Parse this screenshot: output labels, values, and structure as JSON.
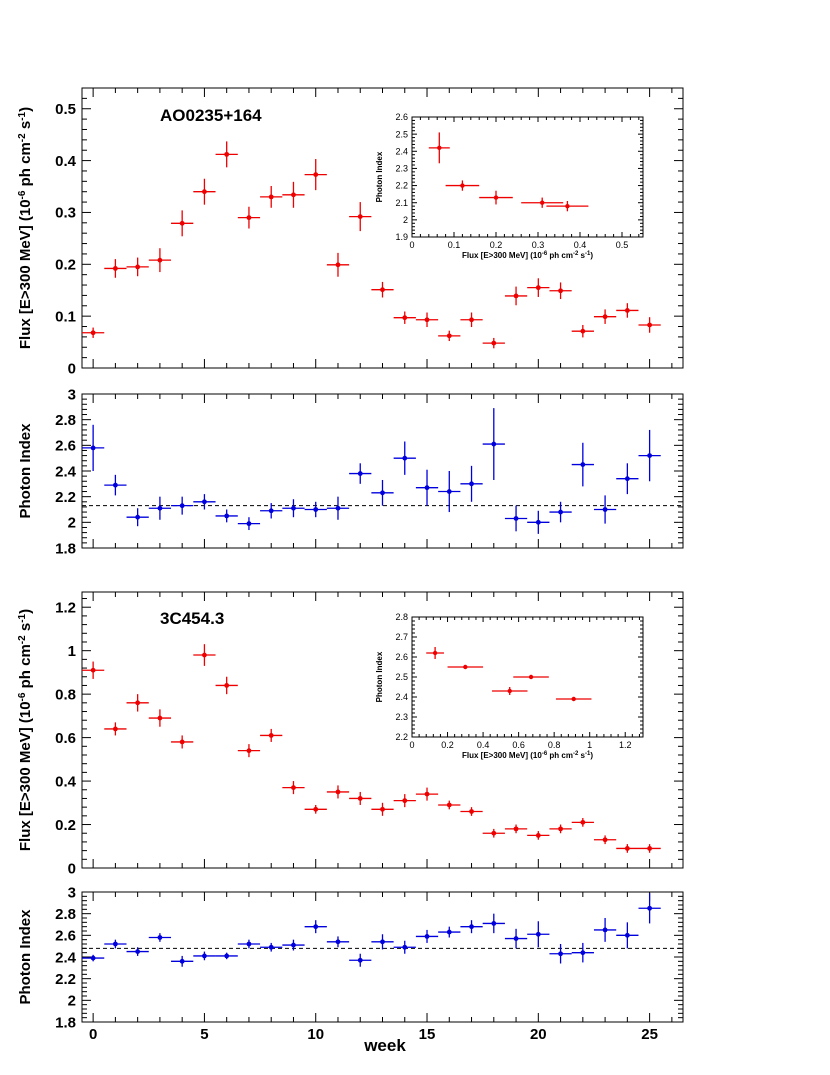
{
  "x_axis": {
    "label": "week",
    "range": [
      -0.5,
      26.5
    ],
    "ticks": [
      "0",
      "5",
      "10",
      "15",
      "20",
      "25"
    ]
  },
  "colors": {
    "flux": "#ee0000",
    "index": "#0000dd",
    "axis": "#000000",
    "reference": "#000000"
  },
  "chart_data": [
    {
      "id": "ao_flux",
      "type": "scatter",
      "title": "AO0235+164",
      "ylabel": "Flux [E>300 MeV] (10^-6 ph cm^-2 s^-1)",
      "ylim": [
        0,
        0.54
      ],
      "yticks": [
        "0",
        "0.1",
        "0.2",
        "0.3",
        "0.4",
        "0.5"
      ],
      "x_error": 0.5,
      "series": [
        {
          "x": [
            0,
            1,
            2,
            3,
            4,
            5,
            6,
            7,
            8,
            9,
            10,
            11,
            12,
            13,
            14,
            15,
            16,
            17,
            18,
            19,
            20,
            21,
            22,
            23,
            24,
            25
          ],
          "y": [
            0.068,
            0.192,
            0.195,
            0.208,
            0.279,
            0.34,
            0.412,
            0.29,
            0.33,
            0.334,
            0.373,
            0.199,
            0.292,
            0.151,
            0.097,
            0.093,
            0.062,
            0.093,
            0.048,
            0.139,
            0.155,
            0.149,
            0.071,
            0.099,
            0.111,
            0.083
          ],
          "yerr": [
            0.01,
            0.018,
            0.018,
            0.023,
            0.025,
            0.025,
            0.025,
            0.021,
            0.021,
            0.025,
            0.03,
            0.023,
            0.028,
            0.015,
            0.012,
            0.014,
            0.01,
            0.014,
            0.01,
            0.018,
            0.018,
            0.016,
            0.012,
            0.014,
            0.014,
            0.015
          ]
        }
      ]
    },
    {
      "id": "ao_index",
      "type": "scatter",
      "ylabel": "Photon Index",
      "ylim": [
        1.8,
        3.0
      ],
      "yticks": [
        "1.8",
        "2",
        "2.2",
        "2.4",
        "2.6",
        "2.8",
        "3"
      ],
      "x_error": 0.5,
      "reference_line": 2.13,
      "series": [
        {
          "x": [
            0,
            1,
            2,
            3,
            4,
            5,
            6,
            7,
            8,
            9,
            10,
            11,
            12,
            13,
            14,
            15,
            16,
            17,
            18,
            19,
            20,
            21,
            22,
            23,
            24,
            25
          ],
          "y": [
            2.58,
            2.29,
            2.04,
            2.11,
            2.13,
            2.16,
            2.05,
            1.99,
            2.09,
            2.11,
            2.1,
            2.11,
            2.38,
            2.23,
            2.5,
            2.27,
            2.24,
            2.3,
            2.61,
            2.03,
            2.0,
            2.08,
            2.45,
            2.1,
            2.34,
            2.52
          ],
          "yerr": [
            0.18,
            0.08,
            0.07,
            0.09,
            0.07,
            0.06,
            0.05,
            0.05,
            0.06,
            0.07,
            0.06,
            0.09,
            0.08,
            0.1,
            0.13,
            0.14,
            0.16,
            0.14,
            0.28,
            0.1,
            0.09,
            0.08,
            0.17,
            0.11,
            0.12,
            0.2
          ]
        }
      ]
    },
    {
      "id": "ao_inset",
      "type": "scatter",
      "xlabel": "Flux [E>300 MeV] (10^-6 ph cm^-2 s^-1)",
      "ylabel": "Photon Index",
      "xlim": [
        0,
        0.55
      ],
      "ylim": [
        1.9,
        2.6
      ],
      "xticks": [
        "0",
        "0.1",
        "0.2",
        "0.3",
        "0.4",
        "0.5"
      ],
      "yticks": [
        "1.9",
        "2",
        "2.1",
        "2.2",
        "2.3",
        "2.4",
        "2.5",
        "2.6"
      ],
      "series": [
        {
          "x": [
            0.065,
            0.12,
            0.2,
            0.31,
            0.37
          ],
          "xerr": [
            0.025,
            0.04,
            0.04,
            0.05,
            0.05
          ],
          "y": [
            2.42,
            2.2,
            2.13,
            2.1,
            2.08
          ],
          "yerr": [
            0.09,
            0.03,
            0.04,
            0.03,
            0.03
          ]
        }
      ]
    },
    {
      "id": "c3_flux",
      "type": "scatter",
      "title": "3C454.3",
      "ylabel": "Flux [E>300 MeV] (10^-6 ph cm^-2 s^-1)",
      "ylim": [
        0,
        1.27
      ],
      "yticks": [
        "0",
        "0.2",
        "0.4",
        "0.6",
        "0.8",
        "1",
        "1.2"
      ],
      "x_error": 0.5,
      "series": [
        {
          "x": [
            0,
            1,
            2,
            3,
            4,
            5,
            6,
            7,
            8,
            9,
            10,
            11,
            12,
            13,
            14,
            15,
            16,
            17,
            18,
            19,
            20,
            21,
            22,
            23,
            24,
            25
          ],
          "y": [
            0.91,
            0.64,
            0.76,
            0.69,
            0.58,
            0.98,
            0.84,
            0.54,
            0.61,
            0.37,
            0.27,
            0.35,
            0.32,
            0.27,
            0.31,
            0.34,
            0.29,
            0.26,
            0.16,
            0.18,
            0.15,
            0.18,
            0.21,
            0.13,
            0.09,
            0.09
          ],
          "yerr": [
            0.04,
            0.03,
            0.04,
            0.04,
            0.03,
            0.05,
            0.04,
            0.03,
            0.03,
            0.03,
            0.02,
            0.03,
            0.03,
            0.03,
            0.03,
            0.03,
            0.02,
            0.02,
            0.02,
            0.02,
            0.02,
            0.02,
            0.02,
            0.02,
            0.02,
            0.02
          ]
        }
      ]
    },
    {
      "id": "c3_index",
      "type": "scatter",
      "ylabel": "Photon Index",
      "ylim": [
        1.8,
        3.0
      ],
      "yticks": [
        "1.8",
        "2",
        "2.2",
        "2.4",
        "2.6",
        "2.8",
        "3"
      ],
      "x_error": 0.5,
      "reference_line": 2.48,
      "series": [
        {
          "x": [
            0,
            1,
            2,
            3,
            4,
            5,
            6,
            7,
            8,
            9,
            10,
            11,
            12,
            13,
            14,
            15,
            16,
            17,
            18,
            19,
            20,
            21,
            22,
            23,
            24,
            25
          ],
          "y": [
            2.39,
            2.52,
            2.45,
            2.58,
            2.36,
            2.41,
            2.41,
            2.52,
            2.49,
            2.51,
            2.68,
            2.54,
            2.37,
            2.54,
            2.49,
            2.59,
            2.63,
            2.68,
            2.71,
            2.57,
            2.61,
            2.43,
            2.44,
            2.65,
            2.6,
            2.85
          ],
          "yerr": [
            0.03,
            0.04,
            0.04,
            0.04,
            0.05,
            0.04,
            0.03,
            0.04,
            0.04,
            0.05,
            0.06,
            0.05,
            0.06,
            0.07,
            0.06,
            0.06,
            0.05,
            0.06,
            0.09,
            0.09,
            0.12,
            0.09,
            0.09,
            0.11,
            0.12,
            0.14
          ]
        }
      ]
    },
    {
      "id": "c3_inset",
      "type": "scatter",
      "xlabel": "Flux [E>300 MeV] (10^-6 ph cm^-2 s^-1)",
      "ylabel": "Photon Index",
      "xlim": [
        0,
        1.3
      ],
      "ylim": [
        2.2,
        2.8
      ],
      "xticks": [
        "0",
        "0.2",
        "0.4",
        "0.6",
        "0.8",
        "1",
        "1.2"
      ],
      "yticks": [
        "2.2",
        "2.3",
        "2.4",
        "2.5",
        "2.6",
        "2.7",
        "2.8"
      ],
      "series": [
        {
          "x": [
            0.13,
            0.3,
            0.55,
            0.67,
            0.91
          ],
          "xerr": [
            0.05,
            0.1,
            0.1,
            0.1,
            0.1
          ],
          "y": [
            2.62,
            2.55,
            2.43,
            2.5,
            2.39
          ],
          "yerr": [
            0.03,
            0.01,
            0.02,
            0.01,
            0.01
          ]
        }
      ]
    }
  ]
}
